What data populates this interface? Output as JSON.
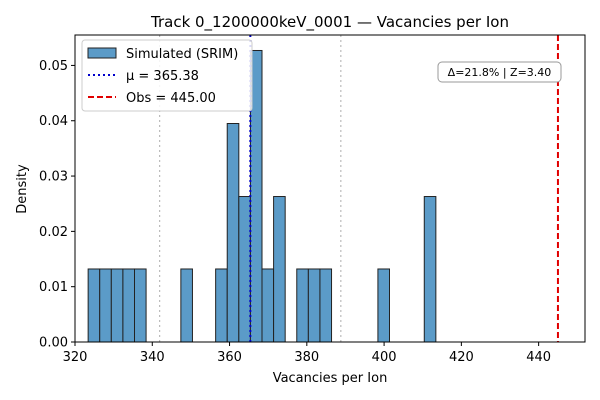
{
  "chart_data": {
    "type": "bar",
    "title": "Track 0_1200000keV_0001 — Vacancies per Ion",
    "xlabel": "Vacancies per Ion",
    "ylabel": "Density",
    "xlim": [
      320,
      452
    ],
    "ylim": [
      0,
      0.0555
    ],
    "xticks": [
      320,
      340,
      360,
      380,
      400,
      420,
      440
    ],
    "yticks": [
      0.0,
      0.01,
      0.02,
      0.03,
      0.04,
      0.05
    ],
    "yticks_label_precision": 2,
    "bin_width": 3.0,
    "series": [
      {
        "name": "Simulated (SRIM)",
        "color": "#5b9bc8",
        "edge_color": "#222222",
        "bins": [
          {
            "x0": 323.4,
            "x1": 326.4,
            "density": 0.0132
          },
          {
            "x0": 326.4,
            "x1": 329.4,
            "density": 0.0132
          },
          {
            "x0": 329.4,
            "x1": 332.4,
            "density": 0.0132
          },
          {
            "x0": 332.4,
            "x1": 335.4,
            "density": 0.0132
          },
          {
            "x0": 335.4,
            "x1": 338.4,
            "density": 0.0132
          },
          {
            "x0": 347.4,
            "x1": 350.4,
            "density": 0.0132
          },
          {
            "x0": 356.4,
            "x1": 359.4,
            "density": 0.0132
          },
          {
            "x0": 359.4,
            "x1": 362.4,
            "density": 0.0395
          },
          {
            "x0": 362.4,
            "x1": 365.4,
            "density": 0.0263
          },
          {
            "x0": 365.4,
            "x1": 368.4,
            "density": 0.0527
          },
          {
            "x0": 368.4,
            "x1": 371.4,
            "density": 0.0132
          },
          {
            "x0": 371.4,
            "x1": 374.4,
            "density": 0.0263
          },
          {
            "x0": 377.4,
            "x1": 380.4,
            "density": 0.0132
          },
          {
            "x0": 380.4,
            "x1": 383.4,
            "density": 0.0132
          },
          {
            "x0": 383.4,
            "x1": 386.4,
            "density": 0.0132
          },
          {
            "x0": 398.4,
            "x1": 401.4,
            "density": 0.0132
          },
          {
            "x0": 410.4,
            "x1": 413.4,
            "density": 0.0263
          }
        ]
      }
    ],
    "reference_lines": [
      {
        "name": "μ = 365.38",
        "x": 365.38,
        "color": "#0000cc",
        "style": "dotted",
        "in_legend": true
      },
      {
        "name": "Obs = 445.00",
        "x": 445.0,
        "color": "#e00000",
        "style": "dashed",
        "in_legend": true
      },
      {
        "x": 341.9,
        "color": "#bbbbbb",
        "style": "dotted",
        "in_legend": false
      },
      {
        "x": 388.8,
        "color": "#bbbbbb",
        "style": "dotted",
        "in_legend": false
      }
    ],
    "annotation": "Δ=21.8% | Z=3.40",
    "legend_position": "top-left",
    "grid": false
  }
}
